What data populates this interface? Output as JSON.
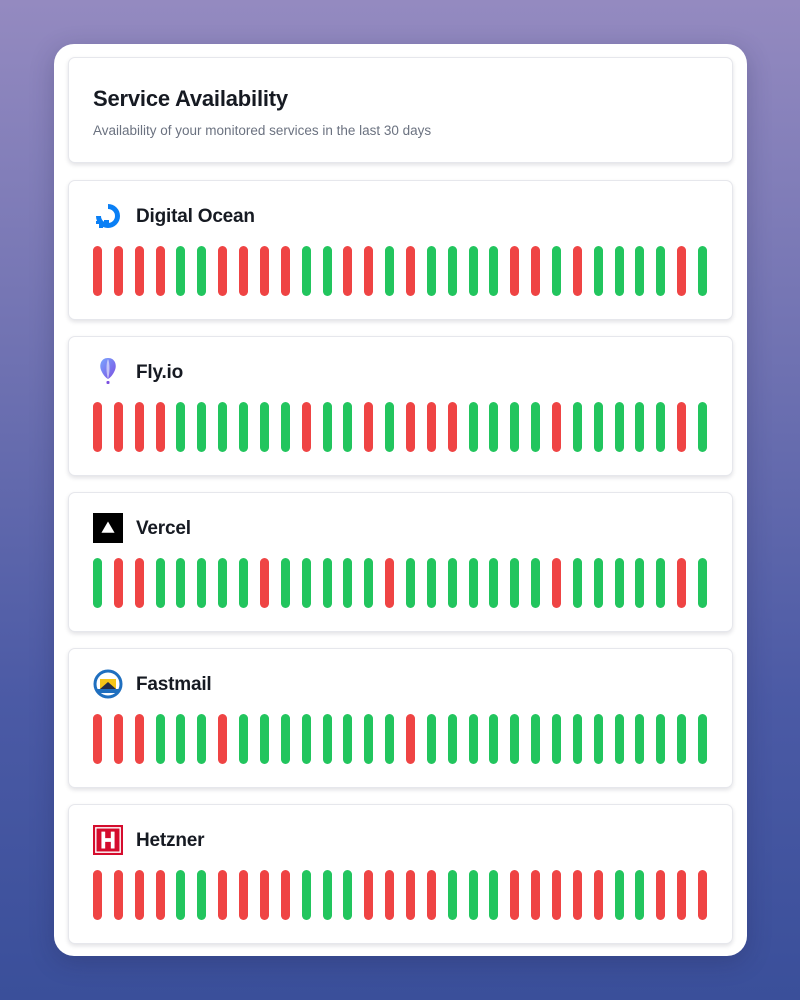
{
  "header": {
    "title": "Service Availability",
    "subtitle": "Availability of your monitored services in the last 30 days"
  },
  "colors": {
    "up": "#22c55e",
    "down": "#ef4444"
  },
  "services": [
    {
      "name": "Digital Ocean",
      "icon": "digitalocean-logo-icon",
      "days": [
        "down",
        "down",
        "down",
        "down",
        "up",
        "up",
        "down",
        "down",
        "down",
        "down",
        "up",
        "up",
        "down",
        "down",
        "up",
        "down",
        "up",
        "up",
        "up",
        "up",
        "down",
        "down",
        "up",
        "down",
        "up",
        "up",
        "up",
        "up",
        "down",
        "up"
      ]
    },
    {
      "name": "Fly.io",
      "icon": "flyio-balloon-icon",
      "days": [
        "down",
        "down",
        "down",
        "down",
        "up",
        "up",
        "up",
        "up",
        "up",
        "up",
        "down",
        "up",
        "up",
        "down",
        "up",
        "down",
        "down",
        "down",
        "up",
        "up",
        "up",
        "up",
        "down",
        "up",
        "up",
        "up",
        "up",
        "up",
        "down",
        "up"
      ]
    },
    {
      "name": "Vercel",
      "icon": "vercel-triangle-icon",
      "days": [
        "up",
        "down",
        "down",
        "up",
        "up",
        "up",
        "up",
        "up",
        "down",
        "up",
        "up",
        "up",
        "up",
        "up",
        "down",
        "up",
        "up",
        "up",
        "up",
        "up",
        "up",
        "up",
        "down",
        "up",
        "up",
        "up",
        "up",
        "up",
        "down",
        "up"
      ]
    },
    {
      "name": "Fastmail",
      "icon": "fastmail-logo-icon",
      "days": [
        "down",
        "down",
        "down",
        "up",
        "up",
        "up",
        "down",
        "up",
        "up",
        "up",
        "up",
        "up",
        "up",
        "up",
        "up",
        "down",
        "up",
        "up",
        "up",
        "up",
        "up",
        "up",
        "up",
        "up",
        "up",
        "up",
        "up",
        "up",
        "up",
        "up"
      ]
    },
    {
      "name": "Hetzner",
      "icon": "hetzner-logo-icon",
      "days": [
        "down",
        "down",
        "down",
        "down",
        "up",
        "up",
        "down",
        "down",
        "down",
        "down",
        "up",
        "up",
        "up",
        "down",
        "down",
        "down",
        "down",
        "up",
        "up",
        "up",
        "down",
        "down",
        "down",
        "down",
        "down",
        "up",
        "up",
        "down",
        "down",
        "down"
      ]
    }
  ]
}
